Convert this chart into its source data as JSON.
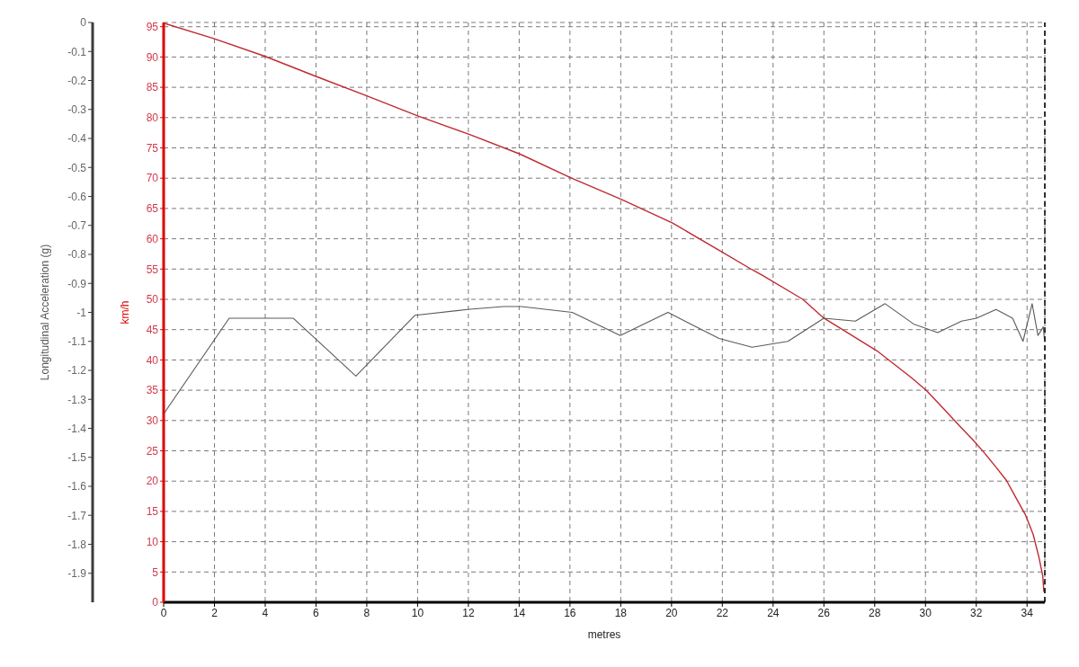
{
  "chart_data": {
    "type": "line",
    "xlabel": "metres",
    "ylabel": "km/h",
    "y2label": "Longitudinal Acceleration (g)",
    "xlim": [
      0,
      34.7
    ],
    "xticks": [
      0,
      2,
      4,
      6,
      8,
      10,
      12,
      14,
      16,
      18,
      20,
      22,
      24,
      26,
      28,
      30,
      32,
      34
    ],
    "ylim": [
      0,
      95.7
    ],
    "yticks": [
      0,
      5,
      10,
      15,
      20,
      25,
      30,
      35,
      40,
      45,
      50,
      55,
      60,
      65,
      70,
      75,
      80,
      85,
      90,
      95
    ],
    "y2lim": [
      -2,
      0
    ],
    "y2ticks": [
      0,
      -0.1,
      -0.2,
      -0.3,
      -0.4,
      -0.5,
      -0.6,
      -0.7,
      -0.8,
      -0.9,
      -1,
      -1.1,
      -1.2,
      -1.3,
      -1.4,
      -1.5,
      -1.6,
      -1.7,
      -1.8,
      -1.9
    ],
    "grid": true,
    "ref_lines": [
      {
        "axis": "x",
        "value": 34.7,
        "color": "#000000",
        "line_style": "dashed"
      }
    ],
    "series": [
      {
        "color": "#bf2a30",
        "x": [
          0,
          2.0,
          4.0,
          6.0,
          8.0,
          10.0,
          12.05,
          14.02,
          16.06,
          18.03,
          20.04,
          21.87,
          23.17,
          23.6,
          25.17,
          26.0,
          28.09,
          29.44,
          30.05,
          30.7,
          31.39,
          31.85,
          32.29,
          32.74,
          33.19,
          33.57,
          33.94,
          34.24,
          34.47,
          34.62,
          34.66
        ],
        "values": [
          95.6,
          93.0,
          90.1,
          86.8,
          83.6,
          80.3,
          77.2,
          74.0,
          70.0,
          66.5,
          62.6,
          58.1,
          54.9,
          53.9,
          50.0,
          46.9,
          41.5,
          37.1,
          34.9,
          32.0,
          28.9,
          26.9,
          24.8,
          22.5,
          20.1,
          17.2,
          14.4,
          11.2,
          7.4,
          4.3,
          1.8
        ]
      },
      {
        "color": "#5a5a5a",
        "axis": "y2",
        "x": [
          0,
          2.58,
          5.1,
          7.57,
          9.9,
          11.96,
          13.38,
          14.08,
          16.09,
          17.98,
          19.86,
          21.87,
          23.17,
          24.58,
          26.0,
          27.24,
          28.41,
          29.53,
          30.48,
          31.42,
          32.01,
          32.78,
          33.43,
          33.84,
          34.2,
          34.43,
          34.64,
          34.68
        ],
        "values": [
          -1.35,
          -1.02,
          -1.02,
          -1.22,
          -1.01,
          -0.99,
          -0.98,
          -0.98,
          -1.0,
          -1.08,
          -1.0,
          -1.09,
          -1.12,
          -1.1,
          -1.02,
          -1.03,
          -0.97,
          -1.04,
          -1.07,
          -1.03,
          -1.02,
          -0.99,
          -1.02,
          -1.1,
          -0.97,
          -1.08,
          -1.05,
          -1.09
        ]
      }
    ]
  }
}
